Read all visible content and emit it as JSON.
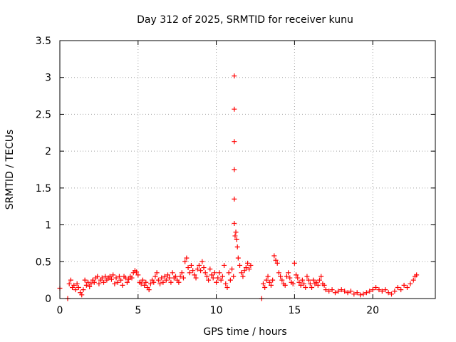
{
  "chart_data": {
    "type": "scatter",
    "title": "Day 312 of 2025, SRMTID for receiver kunu",
    "xlabel": "GPS time / hours",
    "ylabel": "SRMTID / TECUs",
    "xlim": [
      0,
      24
    ],
    "ylim": [
      0,
      3.5
    ],
    "xticks": [
      0,
      5,
      10,
      15,
      20
    ],
    "xtick_labels": [
      "0",
      "5",
      "10",
      "15",
      "20"
    ],
    "yticks": [
      0,
      0.5,
      1,
      1.5,
      2,
      2.5,
      3,
      3.5
    ],
    "ytick_labels": [
      "0",
      "0.5",
      "1",
      "1.5",
      "2",
      "2.5",
      "3",
      "3.5"
    ],
    "grid": true,
    "marker": "+",
    "marker_color": "#ff0000",
    "series": [
      {
        "name": "SRMTID",
        "x": [
          0.0,
          0.5,
          0.6,
          0.7,
          0.8,
          0.9,
          1.0,
          1.1,
          1.2,
          1.3,
          1.4,
          1.5,
          1.6,
          1.7,
          1.8,
          1.9,
          2.0,
          2.1,
          2.2,
          2.3,
          2.4,
          2.5,
          2.6,
          2.7,
          2.8,
          2.9,
          3.0,
          3.1,
          3.2,
          3.3,
          3.4,
          3.5,
          3.6,
          3.7,
          3.8,
          3.9,
          4.0,
          4.1,
          4.2,
          4.3,
          4.4,
          4.5,
          4.6,
          4.7,
          4.8,
          4.9,
          5.0,
          5.1,
          5.2,
          5.3,
          5.4,
          5.5,
          5.6,
          5.7,
          5.8,
          5.9,
          6.0,
          6.1,
          6.2,
          6.3,
          6.4,
          6.5,
          6.6,
          6.7,
          6.8,
          6.9,
          7.0,
          7.1,
          7.2,
          7.3,
          7.4,
          7.5,
          7.6,
          7.7,
          7.8,
          7.9,
          8.0,
          8.1,
          8.2,
          8.3,
          8.4,
          8.5,
          8.6,
          8.7,
          8.8,
          8.9,
          9.0,
          9.1,
          9.2,
          9.3,
          9.4,
          9.5,
          9.6,
          9.7,
          9.8,
          9.9,
          10.0,
          10.1,
          10.2,
          10.3,
          10.4,
          10.5,
          10.6,
          10.7,
          10.8,
          10.9,
          11.0,
          11.1,
          11.15,
          11.15,
          11.15,
          11.15,
          11.15,
          11.15,
          11.2,
          11.25,
          11.3,
          11.35,
          11.4,
          11.5,
          11.6,
          11.7,
          11.8,
          11.9,
          12.0,
          12.1,
          12.2,
          12.9,
          13.0,
          13.1,
          13.2,
          13.3,
          13.4,
          13.5,
          13.6,
          13.7,
          13.8,
          13.9,
          14.0,
          14.1,
          14.2,
          14.3,
          14.4,
          14.5,
          14.6,
          14.7,
          14.8,
          14.9,
          15.0,
          15.1,
          15.2,
          15.3,
          15.4,
          15.5,
          15.6,
          15.7,
          15.8,
          15.9,
          16.0,
          16.1,
          16.2,
          16.3,
          16.4,
          16.5,
          16.6,
          16.7,
          16.8,
          16.9,
          17.0,
          17.2,
          17.4,
          17.6,
          17.8,
          18.0,
          18.2,
          18.4,
          18.6,
          18.8,
          19.0,
          19.2,
          19.4,
          19.6,
          19.8,
          20.0,
          20.2,
          20.4,
          20.6,
          20.8,
          21.0,
          21.2,
          21.4,
          21.6,
          21.8,
          22.0,
          22.2,
          22.4,
          22.6,
          22.7,
          22.8
        ],
        "y": [
          0.14,
          0.0,
          0.2,
          0.25,
          0.15,
          0.18,
          0.12,
          0.2,
          0.15,
          0.08,
          0.05,
          0.12,
          0.25,
          0.18,
          0.22,
          0.16,
          0.2,
          0.25,
          0.22,
          0.28,
          0.3,
          0.2,
          0.25,
          0.28,
          0.22,
          0.3,
          0.25,
          0.28,
          0.3,
          0.26,
          0.32,
          0.2,
          0.28,
          0.22,
          0.3,
          0.25,
          0.18,
          0.3,
          0.28,
          0.22,
          0.26,
          0.3,
          0.28,
          0.35,
          0.38,
          0.36,
          0.32,
          0.22,
          0.2,
          0.25,
          0.18,
          0.22,
          0.15,
          0.12,
          0.2,
          0.25,
          0.22,
          0.3,
          0.35,
          0.25,
          0.2,
          0.28,
          0.22,
          0.3,
          0.25,
          0.32,
          0.28,
          0.22,
          0.35,
          0.28,
          0.3,
          0.25,
          0.22,
          0.3,
          0.35,
          0.28,
          0.5,
          0.55,
          0.42,
          0.35,
          0.45,
          0.38,
          0.32,
          0.28,
          0.4,
          0.45,
          0.38,
          0.5,
          0.42,
          0.35,
          0.3,
          0.25,
          0.4,
          0.32,
          0.28,
          0.35,
          0.22,
          0.28,
          0.35,
          0.25,
          0.3,
          0.45,
          0.2,
          0.15,
          0.35,
          0.25,
          0.4,
          0.3,
          1.02,
          1.35,
          1.75,
          2.13,
          2.57,
          3.02,
          0.85,
          0.9,
          0.8,
          0.7,
          0.55,
          0.45,
          0.35,
          0.3,
          0.38,
          0.42,
          0.48,
          0.4,
          0.45,
          0.0,
          0.2,
          0.15,
          0.25,
          0.3,
          0.22,
          0.18,
          0.25,
          0.58,
          0.52,
          0.48,
          0.35,
          0.3,
          0.25,
          0.2,
          0.18,
          0.3,
          0.35,
          0.28,
          0.22,
          0.2,
          0.48,
          0.32,
          0.28,
          0.22,
          0.18,
          0.25,
          0.2,
          0.15,
          0.3,
          0.25,
          0.2,
          0.15,
          0.25,
          0.2,
          0.22,
          0.18,
          0.25,
          0.3,
          0.2,
          0.18,
          0.12,
          0.1,
          0.12,
          0.08,
          0.1,
          0.12,
          0.1,
          0.08,
          0.1,
          0.06,
          0.08,
          0.05,
          0.06,
          0.08,
          0.1,
          0.12,
          0.15,
          0.12,
          0.1,
          0.12,
          0.08,
          0.06,
          0.1,
          0.15,
          0.12,
          0.18,
          0.15,
          0.2,
          0.25,
          0.3,
          0.32
        ]
      }
    ]
  }
}
